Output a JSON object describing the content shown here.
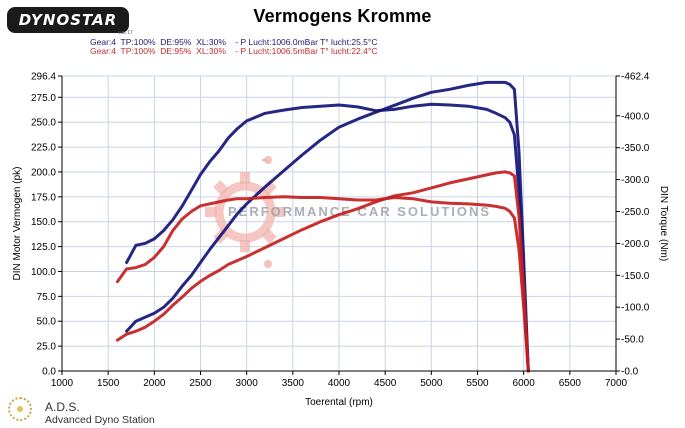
{
  "header": {
    "logo_text": "DYNOSTAR",
    "logo_sub": "ecs 17",
    "title": "Vermogens Kromme",
    "run1": "Gear:4  TP:100%  DE:95%  XL:30%    - P Lucht:1006.0mBar T° lucht:25.5°C",
    "run2": "Gear:4  TP:100%  DE:95%  XL:30%    - P Lucht:1006.5mBar T° lucht:22.4°C"
  },
  "watermark": {
    "text": "PERFORMANCE CAR SOLUTIONS"
  },
  "footer": {
    "abbr": "A.D.S.",
    "full": "Advanced Dyno Station"
  },
  "chart_data": {
    "type": "line",
    "title": "Vermogens Kromme",
    "xlabel": "Toerental (rpm)",
    "ylabel": "DIN Motor Vermogen (pk)",
    "y2label": "DIN Torque (Nm)",
    "xlim": [
      1000,
      7000
    ],
    "ylim": [
      0,
      296.4
    ],
    "y2lim": [
      0,
      462.4
    ],
    "x_ticks": [
      "1000",
      "1500",
      "2000",
      "2500",
      "3000",
      "3500",
      "4000",
      "4500",
      "5000",
      "5500",
      "6000",
      "6500",
      "7000"
    ],
    "y_ticks": [
      "0.0",
      "25.0",
      "50.0",
      "75.0",
      "100.0",
      "125.0",
      "150.0",
      "175.0",
      "200.0",
      "225.0",
      "250.0",
      "275.0",
      "296.4"
    ],
    "y2_ticks": [
      "0.0",
      "50.0",
      "100.0",
      "150.0",
      "200.0",
      "250.0",
      "300.0",
      "350.0",
      "400.0",
      "462.4"
    ],
    "grid": true,
    "series": [
      {
        "color": "#141478",
        "axis": "right",
        "kind": "torque",
        "x": [
          1700,
          1800,
          1900,
          2000,
          2100,
          2200,
          2300,
          2400,
          2500,
          2600,
          2700,
          2800,
          2900,
          3000,
          3200,
          3400,
          3600,
          3800,
          4000,
          4200,
          4400,
          4600,
          4800,
          5000,
          5200,
          5400,
          5600,
          5700,
          5800,
          5850,
          5900,
          5950,
          6000,
          6050
        ],
        "y": [
          170,
          197,
          200,
          207,
          220,
          237,
          258,
          283,
          308,
          328,
          345,
          365,
          380,
          392,
          404,
          409,
          413,
          415,
          417,
          414,
          408,
          410,
          415,
          418,
          417,
          415,
          410,
          404,
          397,
          390,
          370,
          280,
          140,
          0
        ]
      },
      {
        "color": "#141478",
        "axis": "left",
        "kind": "power",
        "x": [
          1700,
          1800,
          1900,
          2000,
          2100,
          2200,
          2300,
          2400,
          2500,
          2600,
          2700,
          2800,
          2900,
          3000,
          3200,
          3400,
          3600,
          3800,
          4000,
          4200,
          4400,
          4600,
          4800,
          5000,
          5200,
          5400,
          5600,
          5700,
          5800,
          5850,
          5900,
          5950,
          6000,
          6050
        ],
        "y": [
          40,
          50,
          54,
          58,
          64,
          73,
          85,
          96,
          109,
          122,
          134,
          146,
          158,
          168,
          185,
          201,
          217,
          232,
          245,
          253,
          260,
          267,
          274,
          280,
          283,
          287,
          290,
          290,
          290,
          288,
          283,
          220,
          112,
          0
        ]
      },
      {
        "color": "#c41e1e",
        "axis": "right",
        "kind": "torque",
        "x": [
          1600,
          1700,
          1800,
          1900,
          2000,
          2100,
          2200,
          2300,
          2400,
          2500,
          2600,
          2700,
          2800,
          2900,
          3000,
          3200,
          3400,
          3600,
          3800,
          4000,
          4200,
          4400,
          4600,
          4800,
          5000,
          5200,
          5400,
          5600,
          5700,
          5800,
          5850,
          5900,
          5950,
          6000,
          6050
        ],
        "y": [
          140,
          160,
          162,
          167,
          178,
          195,
          220,
          238,
          250,
          259,
          262,
          265,
          268,
          270,
          270,
          272,
          273,
          272,
          272,
          270,
          268,
          268,
          272,
          270,
          265,
          263,
          262,
          260,
          258,
          255,
          250,
          240,
          190,
          100,
          0
        ]
      },
      {
        "color": "#c41e1e",
        "axis": "left",
        "kind": "power",
        "x": [
          1600,
          1700,
          1800,
          1900,
          2000,
          2100,
          2200,
          2300,
          2400,
          2500,
          2600,
          2700,
          2800,
          2900,
          3000,
          3200,
          3400,
          3600,
          3800,
          4000,
          4200,
          4400,
          4600,
          4800,
          5000,
          5200,
          5400,
          5600,
          5700,
          5800,
          5850,
          5900,
          5950,
          6000,
          6050
        ],
        "y": [
          31,
          37,
          40,
          44,
          50,
          57,
          66,
          74,
          83,
          90,
          96,
          101,
          107,
          111,
          115,
          124,
          133,
          142,
          150,
          157,
          163,
          170,
          176,
          179,
          184,
          189,
          193,
          197,
          199,
          200,
          199,
          196,
          155,
          82,
          0
        ]
      }
    ]
  }
}
